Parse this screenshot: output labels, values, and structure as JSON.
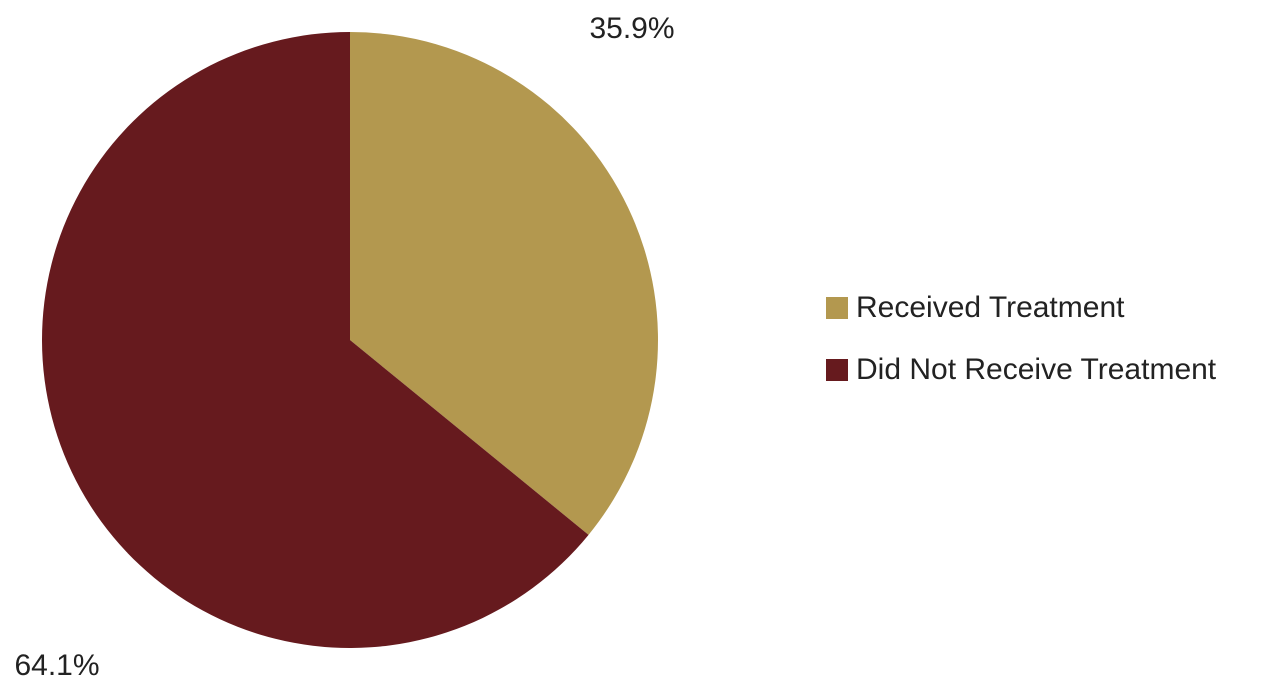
{
  "chart_data": {
    "type": "pie",
    "categories": [
      "Received Treatment",
      "Did Not Receive Treatment"
    ],
    "values": [
      35.9,
      64.1
    ],
    "labels": [
      "35.9%",
      "64.1%"
    ],
    "colors": [
      "#b3984f",
      "#661a1e"
    ],
    "legend_position": "right"
  }
}
